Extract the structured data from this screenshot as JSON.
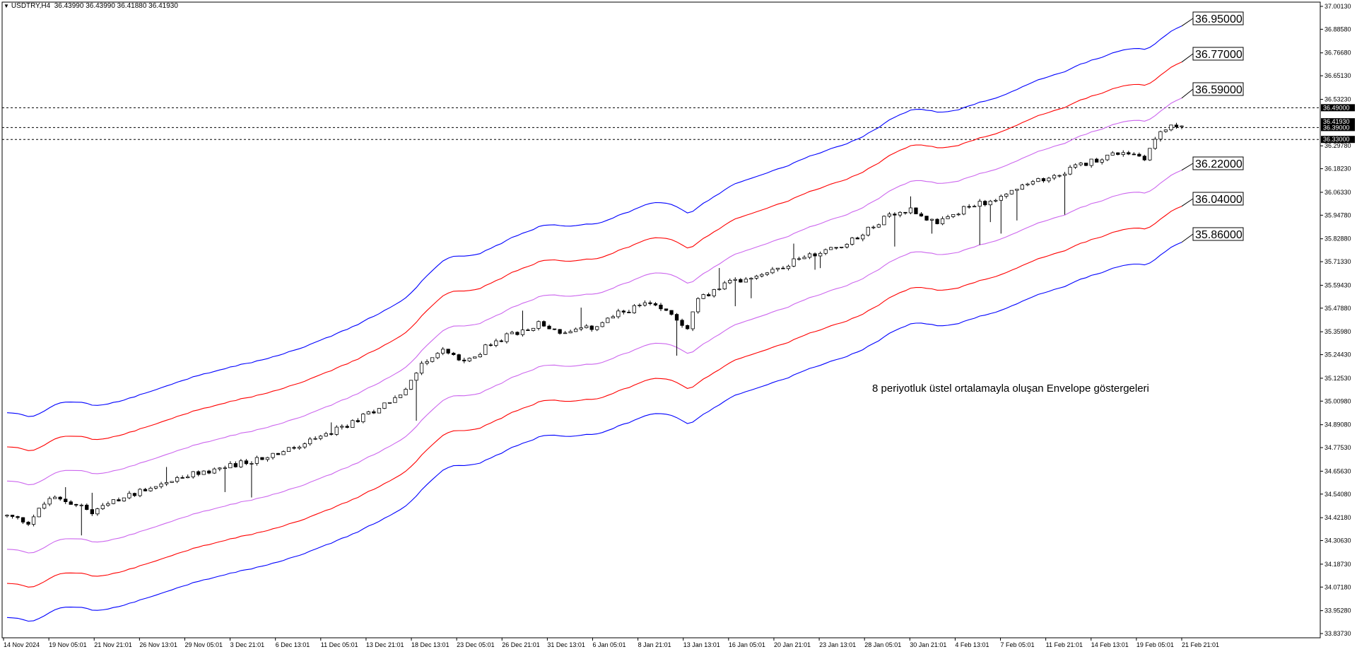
{
  "header": {
    "symbol": "USDTRY,H4",
    "ohlc": "36.43990 36.43990 36.41880 36.41930"
  },
  "annotation": "8 periyotluk üstel ortalamayla oluşan Envelope göstergeleri",
  "colors": {
    "candles": "#000000",
    "envelope_outer": "#0000ff",
    "envelope_middle": "#ff0000",
    "envelope_inner": "#cc66ee",
    "horizontal_lines": "#000000"
  },
  "chart_data": {
    "type": "candlestick",
    "symbol": "USDTRY",
    "timeframe": "H4",
    "ylim": [
      33.8373,
      37.0013
    ],
    "y_ticks": [
      "37.00130",
      "36.88580",
      "36.76680",
      "36.65130",
      "36.53230",
      "36.29780",
      "36.18230",
      "36.06330",
      "35.94780",
      "35.82880",
      "35.71330",
      "35.59430",
      "35.47880",
      "35.35980",
      "35.24430",
      "35.12530",
      "35.00980",
      "34.89080",
      "34.77530",
      "34.65630",
      "34.54080",
      "34.42180",
      "34.30630",
      "34.18730",
      "34.07180",
      "33.95280",
      "33.83730"
    ],
    "x_ticks": [
      "14 Nov 2024",
      "19 Nov 05:01",
      "21 Nov 21:01",
      "26 Nov 13:01",
      "29 Nov 05:01",
      "3 Dec 21:01",
      "6 Dec 13:01",
      "11 Dec 05:01",
      "13 Dec 21:01",
      "18 Dec 13:01",
      "23 Dec 05:01",
      "26 Dec 21:01",
      "31 Dec 13:01",
      "6 Jan 05:01",
      "8 Jan 21:01",
      "13 Jan 13:01",
      "16 Jan 05:01",
      "20 Jan 21:01",
      "23 Jan 13:01",
      "28 Jan 05:01",
      "30 Jan 21:01",
      "4 Feb 13:01",
      "7 Feb 05:01",
      "11 Feb 21:01",
      "14 Feb 13:01",
      "19 Feb 05:01",
      "21 Feb 21:01"
    ],
    "price_profile": [
      [
        0,
        34.43
      ],
      [
        4,
        34.4
      ],
      [
        8,
        34.52
      ],
      [
        12,
        34.5
      ],
      [
        16,
        34.45
      ],
      [
        20,
        34.5
      ],
      [
        25,
        34.56
      ],
      [
        30,
        34.6
      ],
      [
        35,
        34.64
      ],
      [
        40,
        34.67
      ],
      [
        45,
        34.7
      ],
      [
        50,
        34.74
      ],
      [
        55,
        34.78
      ],
      [
        60,
        34.84
      ],
      [
        65,
        34.9
      ],
      [
        70,
        34.98
      ],
      [
        75,
        35.06
      ],
      [
        78,
        35.2
      ],
      [
        82,
        35.27
      ],
      [
        86,
        35.2
      ],
      [
        90,
        35.28
      ],
      [
        95,
        35.35
      ],
      [
        100,
        35.4
      ],
      [
        105,
        35.35
      ],
      [
        110,
        35.38
      ],
      [
        115,
        35.45
      ],
      [
        120,
        35.5
      ],
      [
        125,
        35.45
      ],
      [
        128,
        35.38
      ],
      [
        130,
        35.52
      ],
      [
        135,
        35.6
      ],
      [
        140,
        35.64
      ],
      [
        145,
        35.68
      ],
      [
        150,
        35.74
      ],
      [
        155,
        35.78
      ],
      [
        160,
        35.83
      ],
      [
        162,
        35.88
      ],
      [
        165,
        35.93
      ],
      [
        170,
        35.98
      ],
      [
        175,
        35.9
      ],
      [
        180,
        35.98
      ],
      [
        185,
        36.02
      ],
      [
        190,
        36.08
      ],
      [
        195,
        36.13
      ],
      [
        200,
        36.18
      ],
      [
        205,
        36.23
      ],
      [
        210,
        36.27
      ],
      [
        214,
        36.24
      ],
      [
        217,
        36.37
      ],
      [
        222,
        36.42
      ]
    ],
    "candle_count": 222,
    "envelope": {
      "period": 8,
      "ma_method": "exponential",
      "bands": [
        {
          "name": "outer",
          "color": "#0000ff",
          "deviation": 0.015
        },
        {
          "name": "middle",
          "color": "#ff0000",
          "deviation": 0.01
        },
        {
          "name": "inner",
          "color": "#cc66ee",
          "deviation": 0.005
        }
      ]
    },
    "band_labels": [
      "36.95000",
      "36.77000",
      "36.59000",
      "36.22000",
      "36.04000",
      "35.86000"
    ],
    "horizontal_levels": [
      {
        "value": 36.49,
        "label": "36.49000"
      },
      {
        "value": 36.39,
        "label": "36.39000"
      },
      {
        "value": 36.33,
        "label": "36.33000"
      }
    ],
    "current_price": {
      "value": 36.4193,
      "label": "36.41930"
    }
  }
}
